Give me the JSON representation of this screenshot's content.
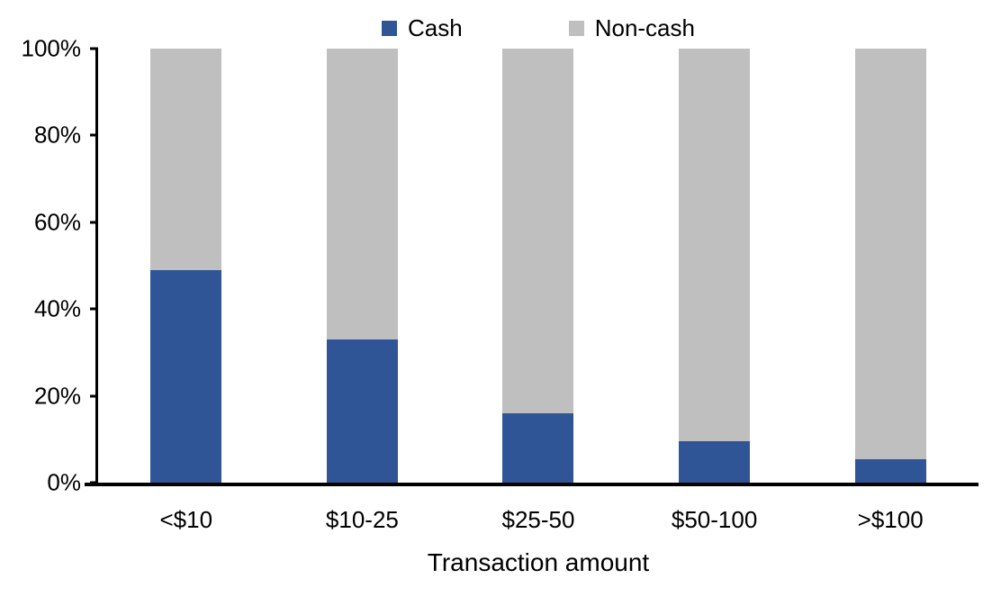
{
  "chart_data": {
    "type": "bar",
    "variant": "stacked-100-percent",
    "categories": [
      "<$10",
      "$10-25",
      "$25-50",
      "$50-100",
      ">$100"
    ],
    "series": [
      {
        "name": "Cash",
        "color": "#2F5597",
        "values": [
          49,
          33,
          16,
          9.5,
          5.5
        ]
      },
      {
        "name": "Non-cash",
        "color": "#BFBFBF",
        "values": [
          51,
          67,
          84,
          90.5,
          94.5
        ]
      }
    ],
    "title": "",
    "xlabel": "Transaction amount",
    "ylabel": "",
    "ylim": [
      0,
      100
    ],
    "ytick_labels": [
      "0%",
      "20%",
      "40%",
      "60%",
      "80%",
      "100%"
    ],
    "legend_position": "top-center",
    "grid": "off",
    "axis_color": "#000000",
    "background_color": "#FFFFFF"
  }
}
